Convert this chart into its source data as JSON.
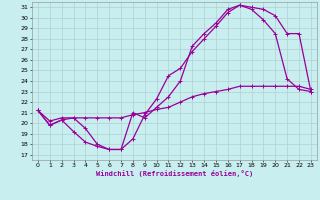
{
  "xlabel": "Windchill (Refroidissement éolien,°C)",
  "background_color": "#c8eef0",
  "line_color": "#990099",
  "grid_color": "#b0d0d0",
  "xlim": [
    -0.5,
    23.5
  ],
  "ylim": [
    16.5,
    31.5
  ],
  "xticks": [
    0,
    1,
    2,
    3,
    4,
    5,
    6,
    7,
    8,
    9,
    10,
    11,
    12,
    13,
    14,
    15,
    16,
    17,
    18,
    19,
    20,
    21,
    22,
    23
  ],
  "yticks": [
    17,
    18,
    19,
    20,
    21,
    22,
    23,
    24,
    25,
    26,
    27,
    28,
    29,
    30,
    31
  ],
  "curve1_x": [
    0,
    1,
    2,
    3,
    4,
    5,
    6,
    7,
    8,
    9,
    10,
    11,
    12,
    13,
    14,
    15,
    16,
    17,
    18,
    19,
    20,
    21,
    22,
    23
  ],
  "curve1_y": [
    21.2,
    19.8,
    20.3,
    19.2,
    18.2,
    17.8,
    17.5,
    17.5,
    18.5,
    20.8,
    22.3,
    24.5,
    25.2,
    26.8,
    28.0,
    29.2,
    30.5,
    31.2,
    30.8,
    29.8,
    28.5,
    24.2,
    23.2,
    23.0
  ],
  "curve2_x": [
    0,
    1,
    2,
    3,
    4,
    5,
    6,
    7,
    8,
    9,
    10,
    11,
    12,
    13,
    14,
    15,
    16,
    17,
    18,
    19,
    20,
    21,
    22,
    23
  ],
  "curve2_y": [
    21.2,
    19.8,
    20.3,
    20.5,
    19.5,
    18.0,
    17.5,
    17.5,
    21.0,
    20.5,
    21.5,
    22.5,
    24.0,
    27.3,
    28.5,
    29.5,
    30.8,
    31.2,
    31.0,
    30.8,
    30.2,
    28.5,
    28.5,
    23.0
  ],
  "curve3_x": [
    0,
    1,
    2,
    3,
    4,
    5,
    6,
    7,
    8,
    9,
    10,
    11,
    12,
    13,
    14,
    15,
    16,
    17,
    18,
    19,
    20,
    21,
    22,
    23
  ],
  "curve3_y": [
    21.2,
    20.2,
    20.5,
    20.5,
    20.5,
    20.5,
    20.5,
    20.5,
    20.8,
    21.0,
    21.3,
    21.5,
    22.0,
    22.5,
    22.8,
    23.0,
    23.2,
    23.5,
    23.5,
    23.5,
    23.5,
    23.5,
    23.5,
    23.2
  ]
}
